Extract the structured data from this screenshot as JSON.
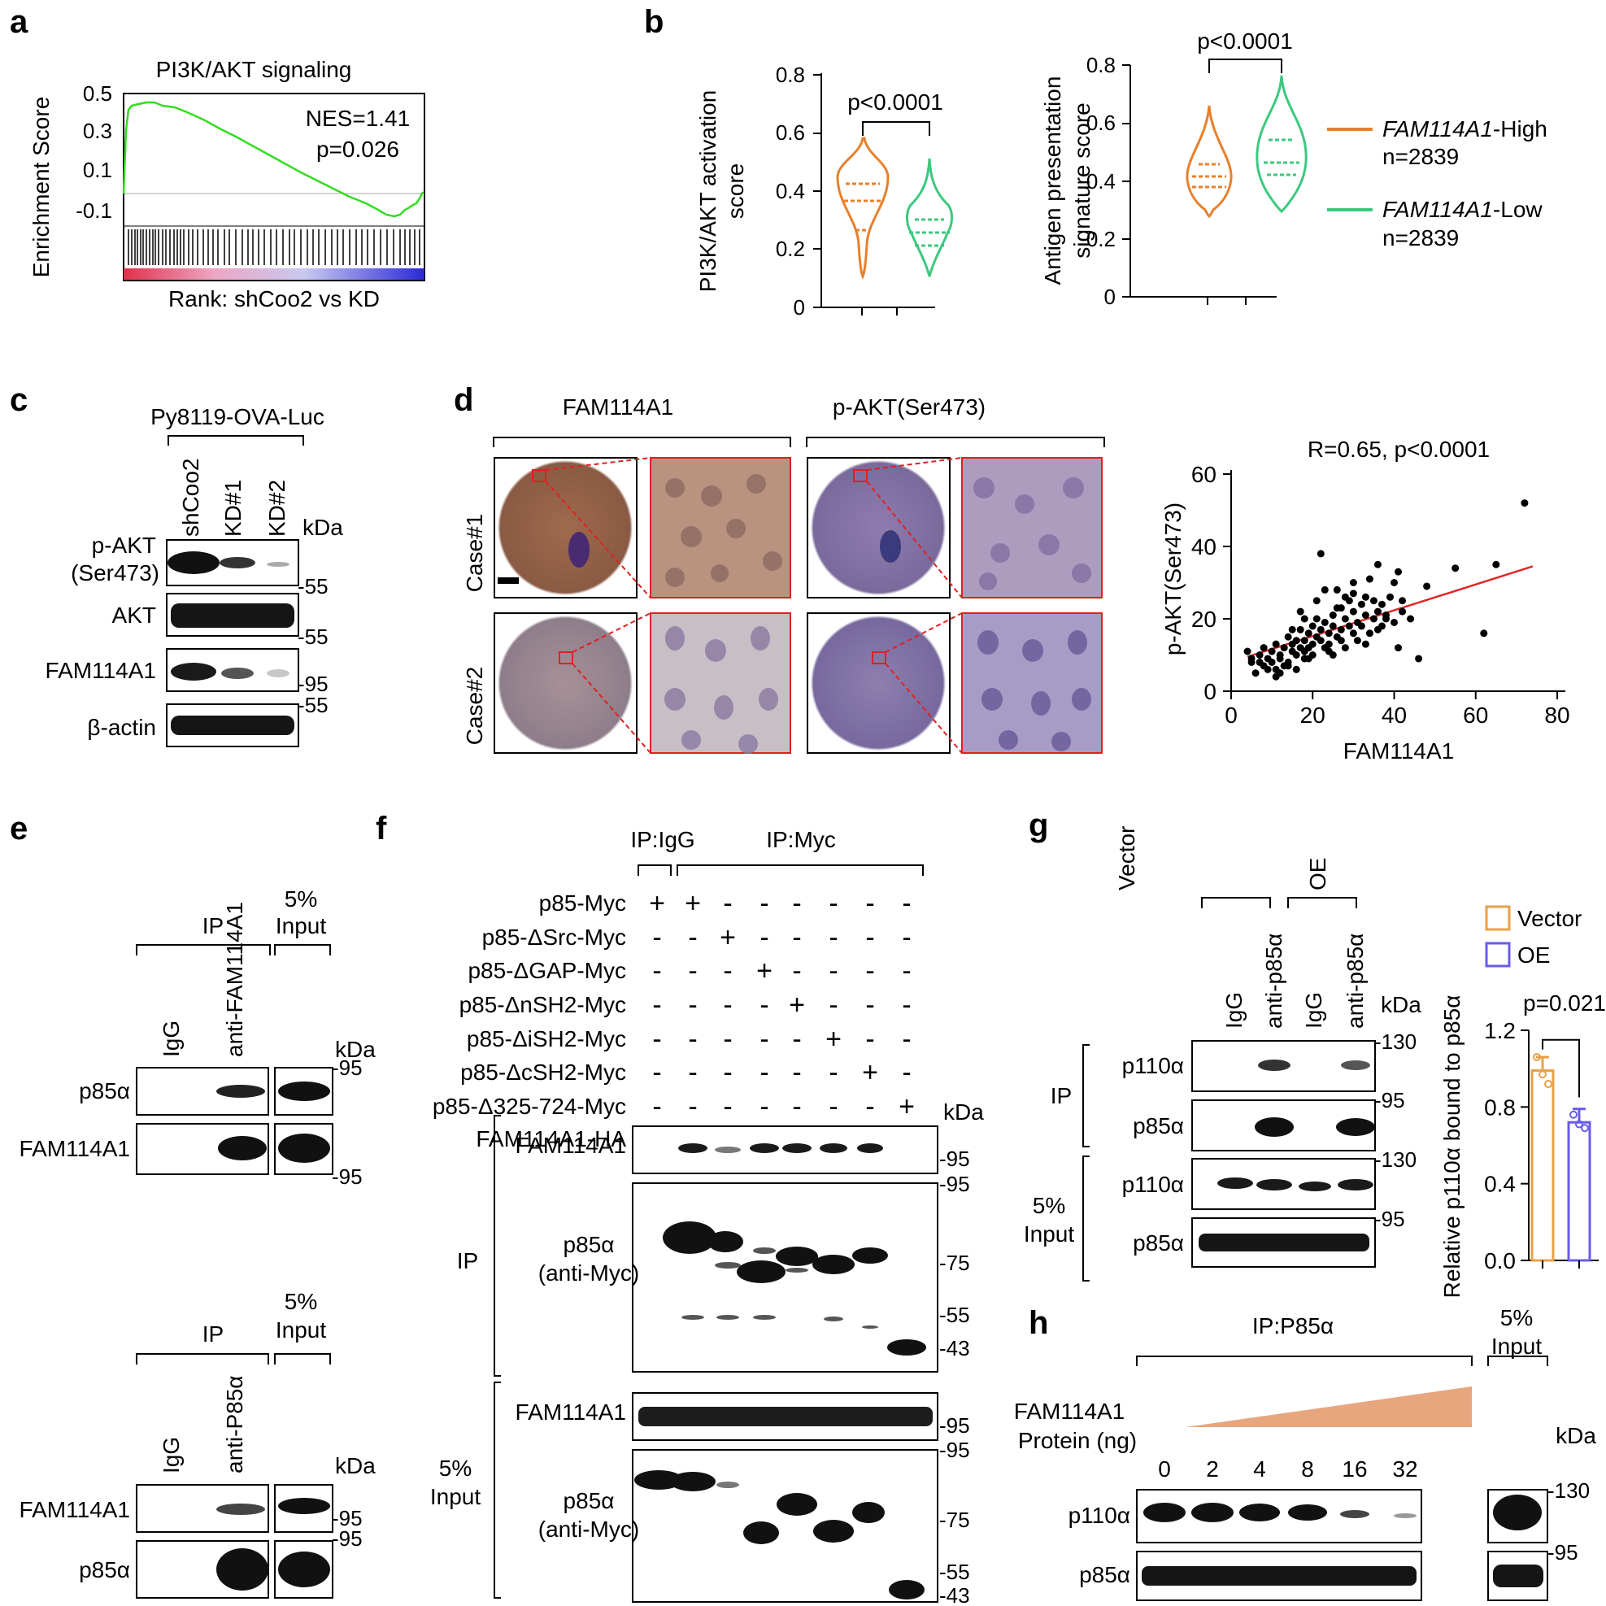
{
  "panel_labels": {
    "a": "a",
    "b": "b",
    "c": "c",
    "d": "d",
    "e": "e",
    "f": "f",
    "g": "g",
    "h": "h"
  },
  "a": {
    "title": "PI3K/AKT signaling",
    "ylabel": "Enrichment Score",
    "xlabel": "Rank: shCoo2 vs KD",
    "nes": "NES=1.41",
    "p": "p=0.026",
    "yticks": [
      "0.5",
      "0.3",
      "0.1",
      "-0.1"
    ]
  },
  "b": {
    "left": {
      "ylabel1": "PI3K/AKT activation",
      "ylabel2": "score",
      "yticks": [
        "0.8",
        "0.6",
        "0.4",
        "0.2",
        "0"
      ],
      "p": "p<0.0001"
    },
    "right": {
      "ylabel1": "Antigen presentation",
      "ylabel2": "signature score",
      "yticks": [
        "0.8",
        "0.6",
        "0.4",
        "0.2",
        "0"
      ],
      "p": "p<0.0001"
    },
    "legend": {
      "high_gene": "FAM114A1",
      "high_suffix": "-High",
      "high_n": "n=2839",
      "low_gene": "FAM114A1",
      "low_suffix": "-Low",
      "low_n": "n=2839",
      "high_color": "#e8802a",
      "low_color": "#3cc97e"
    }
  },
  "c": {
    "cell_line": "Py8119-OVA-Luc",
    "lanes": [
      "shCoo2",
      "KD#1",
      "KD#2"
    ],
    "kda": "kDa",
    "rows": [
      {
        "l1": "p-AKT",
        "l2": "(Ser473)"
      },
      {
        "l1": "AKT"
      },
      {
        "l1": "FAM114A1"
      },
      {
        "l1": "β-actin"
      }
    ],
    "markers": [
      "-55",
      "-55",
      "-95",
      "-55"
    ]
  },
  "d": {
    "headers": [
      "FAM114A1",
      "p-AKT(Ser473)"
    ],
    "cases": [
      "Case#1",
      "Case#2"
    ],
    "chart_data": {
      "type": "scatter",
      "title": "R=0.65, p<0.0001",
      "xlabel": "FAM114A1",
      "ylabel": "p-AKT(Ser473)",
      "xlim": [
        0,
        80
      ],
      "ylim": [
        0,
        60
      ],
      "xticks": [
        "0",
        "20",
        "40",
        "60",
        "80"
      ],
      "yticks": [
        "0",
        "20",
        "40",
        "60"
      ],
      "fit": {
        "x": [
          4,
          74
        ],
        "y": [
          9.5,
          34.5
        ]
      },
      "points": [
        [
          4,
          11
        ],
        [
          5,
          9
        ],
        [
          5,
          8
        ],
        [
          6,
          5
        ],
        [
          7,
          10
        ],
        [
          7,
          8
        ],
        [
          8,
          12
        ],
        [
          8,
          7
        ],
        [
          9,
          6
        ],
        [
          9,
          9
        ],
        [
          10,
          11
        ],
        [
          10,
          8
        ],
        [
          11,
          6
        ],
        [
          11,
          13
        ],
        [
          12,
          10
        ],
        [
          12,
          9
        ],
        [
          13,
          7
        ],
        [
          13,
          12
        ],
        [
          14,
          15
        ],
        [
          14,
          8
        ],
        [
          15,
          11
        ],
        [
          15,
          13
        ],
        [
          16,
          10
        ],
        [
          16,
          14
        ],
        [
          16,
          6
        ],
        [
          17,
          17
        ],
        [
          17,
          12
        ],
        [
          18,
          9
        ],
        [
          18,
          14
        ],
        [
          18,
          11
        ],
        [
          19,
          16
        ],
        [
          19,
          12
        ],
        [
          20,
          13
        ],
        [
          20,
          18
        ],
        [
          20,
          10
        ],
        [
          21,
          15
        ],
        [
          21,
          20
        ],
        [
          22,
          38
        ],
        [
          22,
          14
        ],
        [
          22,
          17
        ],
        [
          23,
          12
        ],
        [
          23,
          19
        ],
        [
          24,
          16
        ],
        [
          24,
          13
        ],
        [
          25,
          18
        ],
        [
          25,
          21
        ],
        [
          25,
          10
        ],
        [
          26,
          15
        ],
        [
          26,
          23
        ],
        [
          27,
          17
        ],
        [
          27,
          14
        ],
        [
          28,
          20
        ],
        [
          28,
          12
        ],
        [
          29,
          25
        ],
        [
          29,
          18
        ],
        [
          30,
          16
        ],
        [
          30,
          22
        ],
        [
          30,
          27
        ],
        [
          31,
          19
        ],
        [
          31,
          14
        ],
        [
          32,
          24
        ],
        [
          32,
          18
        ],
        [
          33,
          21
        ],
        [
          33,
          26
        ],
        [
          34,
          16
        ],
        [
          34,
          31
        ],
        [
          35,
          20
        ],
        [
          35,
          25
        ],
        [
          36,
          22
        ],
        [
          36,
          35
        ],
        [
          37,
          18
        ],
        [
          37,
          24
        ],
        [
          38,
          21
        ],
        [
          39,
          26
        ],
        [
          40,
          19
        ],
        [
          40,
          30
        ],
        [
          41,
          33
        ],
        [
          41,
          12
        ],
        [
          42,
          25
        ],
        [
          42,
          22
        ],
        [
          44,
          20
        ],
        [
          46,
          9
        ],
        [
          48,
          29
        ],
        [
          55,
          34
        ],
        [
          62,
          16
        ],
        [
          65,
          35
        ],
        [
          72,
          52
        ],
        [
          11,
          4
        ],
        [
          12,
          5
        ],
        [
          14,
          7
        ],
        [
          19,
          9
        ],
        [
          24,
          11
        ],
        [
          26,
          28
        ],
        [
          28,
          26
        ],
        [
          30,
          30
        ],
        [
          33,
          13
        ],
        [
          36,
          17
        ],
        [
          38,
          20
        ],
        [
          15,
          17
        ],
        [
          17,
          22
        ],
        [
          21,
          25
        ],
        [
          23,
          28
        ],
        [
          18,
          20
        ],
        [
          27,
          23
        ]
      ]
    }
  },
  "e": {
    "top": {
      "ip": "IP",
      "input1": "5%",
      "input2": "Input",
      "lanes": [
        "IgG",
        "anti-FAM114A1"
      ],
      "kda": "kDa",
      "rows": [
        "p85α",
        "FAM114A1"
      ],
      "markers": [
        "-95",
        "-95"
      ]
    },
    "bottom": {
      "ip": "IP",
      "input1": "5%",
      "input2": "Input",
      "lanes": [
        "IgG",
        "anti-P85α"
      ],
      "kda": "kDa",
      "rows": [
        "FAM114A1",
        "p85α"
      ],
      "markers": [
        "-95",
        "-95"
      ]
    }
  },
  "f": {
    "ip_igg": "IP:IgG",
    "ip_myc": "IP:Myc",
    "constructs": [
      "p85-Myc",
      "p85-ΔSrc-Myc",
      "p85-ΔGAP-Myc",
      "p85-ΔnSH2-Myc",
      "p85-ΔiSH2-Myc",
      "p85-ΔcSH2-Myc",
      "p85-Δ325-724-Myc",
      "FAM114A1-HA"
    ],
    "matrix": [
      [
        "+",
        "+",
        "-",
        "-",
        "-",
        "-",
        "-",
        "-"
      ],
      [
        "-",
        "-",
        "+",
        "-",
        "-",
        "-",
        "-",
        "-"
      ],
      [
        "-",
        "-",
        "-",
        "+",
        "-",
        "-",
        "-",
        "-"
      ],
      [
        "-",
        "-",
        "-",
        "-",
        "+",
        "-",
        "-",
        "-"
      ],
      [
        "-",
        "-",
        "-",
        "-",
        "-",
        "+",
        "-",
        "-"
      ],
      [
        "-",
        "-",
        "-",
        "-",
        "-",
        "-",
        "+",
        "-"
      ],
      [
        "-",
        "-",
        "-",
        "-",
        "-",
        "-",
        "-",
        "+"
      ],
      [
        "+",
        "+",
        "+",
        "+",
        "+",
        "+",
        "+",
        "+"
      ]
    ],
    "kda": "kDa",
    "ip_label": "IP",
    "input1": "5%",
    "input2": "Input",
    "blots": {
      "fam": "FAM114A1",
      "p85a": "p85α",
      "antimyc": "(anti-Myc)"
    },
    "mk_fam": "-95",
    "mk_p85": [
      "-95",
      "-75",
      "-55",
      "-43"
    ]
  },
  "g": {
    "groups": [
      "Vector",
      "OE"
    ],
    "lanes": [
      "IgG",
      "anti-p85α",
      "IgG",
      "anti-p85α"
    ],
    "kda": "kDa",
    "ip": "IP",
    "input1": "5%",
    "input2": "Input",
    "rows": [
      "p110α",
      "p85α",
      "p110α",
      "p85α"
    ],
    "markers": [
      "-130",
      "-95",
      "-130",
      "-95"
    ],
    "chart_data": {
      "type": "bar",
      "categories": [
        "Vector",
        "OE"
      ],
      "values": [
        0.99,
        0.72
      ],
      "points": [
        [
          1.06,
          0.97,
          0.92
        ],
        [
          0.76,
          0.71,
          0.69
        ]
      ],
      "ylabel": "Relative p110α bound to p85α",
      "ylim": [
        0,
        1.2
      ],
      "yticks": [
        "0.0",
        "0.4",
        "0.8",
        "1.2"
      ],
      "p": "p=0.021",
      "colors": [
        "#e8a048",
        "#6a5ce8"
      ]
    }
  },
  "h": {
    "ip": "IP:P85α",
    "input1": "5%",
    "input2": "Input",
    "lab1": "FAM114A1",
    "lab2": "Protein (ng)",
    "amounts": [
      "0",
      "2",
      "4",
      "8",
      "16",
      "32"
    ],
    "kda": "kDa",
    "rows": [
      "p110α",
      "p85α"
    ],
    "markers": [
      "-130",
      "-95"
    ],
    "ramp_color": "#e8a67e"
  }
}
